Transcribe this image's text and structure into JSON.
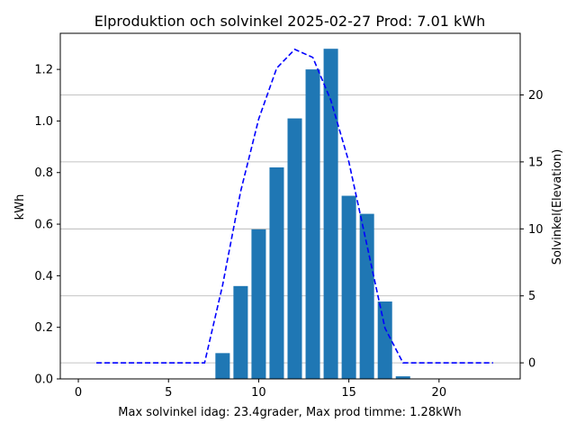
{
  "chart_data": {
    "type": "bar",
    "title": "Elproduktion och solvinkel 2025-02-27 Prod: 7.01 kWh",
    "xlabel": "Max solvinkel idag: 23.4grader, Max prod timme: 1.28kWh",
    "ylabel": "kWh",
    "y2label": "Solvinkel(Elevation)",
    "xlim": [
      -1,
      24.5
    ],
    "ylim": [
      0,
      1.34
    ],
    "y2lim": [
      -1.2,
      24.6
    ],
    "x_ticks": [
      0,
      5,
      10,
      15,
      20
    ],
    "y_ticks": [
      0.0,
      0.2,
      0.4,
      0.6,
      0.8,
      1.0,
      1.2
    ],
    "y2_ticks": [
      0,
      5,
      10,
      15,
      20
    ],
    "grid": "horizontal lines at right-axis ticks",
    "bar_color": "#1f77b4",
    "line_color": "#0000ff",
    "right_axis_label_color": "#0000ff",
    "series": [
      {
        "kind": "bar",
        "x": [
          8,
          9,
          10,
          11,
          12,
          13,
          14,
          15,
          16,
          17,
          18
        ],
        "values": [
          0.1,
          0.36,
          0.58,
          0.82,
          1.01,
          1.2,
          1.28,
          0.71,
          0.64,
          0.3,
          0.01
        ]
      },
      {
        "kind": "line",
        "style": "dashed",
        "axis": "right",
        "x": [
          1,
          2,
          3,
          4,
          5,
          6,
          7,
          8,
          9,
          10,
          11,
          12,
          13,
          14,
          15,
          16,
          17,
          18,
          19,
          20,
          21,
          22,
          23
        ],
        "values": [
          0,
          0,
          0,
          0,
          0,
          0,
          0,
          5.8,
          12.8,
          18.2,
          22.0,
          23.4,
          22.8,
          19.6,
          15.0,
          8.8,
          2.6,
          0,
          0,
          0,
          0,
          0,
          0
        ]
      }
    ]
  }
}
